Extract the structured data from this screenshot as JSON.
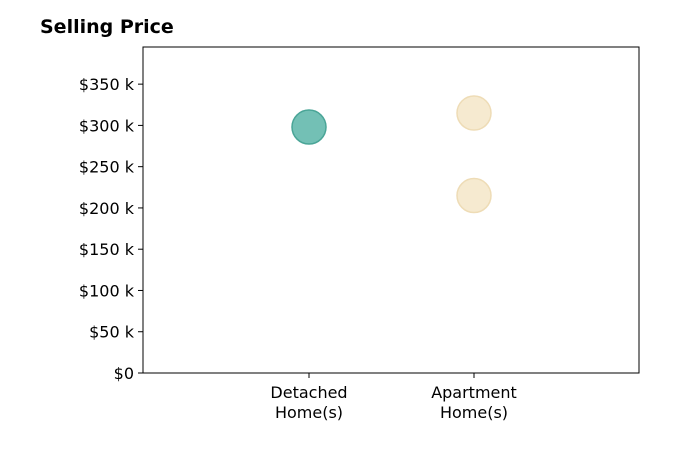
{
  "chart_data": {
    "type": "scatter",
    "title": "Selling Price",
    "xlabel": "",
    "ylabel": "",
    "categories": [
      {
        "line1": "Detached",
        "line2": "Home(s)"
      },
      {
        "line1": "Apartment",
        "line2": "Home(s)"
      }
    ],
    "ylim": [
      0,
      395000
    ],
    "yticks": [
      0,
      50000,
      100000,
      150000,
      200000,
      250000,
      300000,
      350000
    ],
    "ytick_labels": [
      "$0",
      "$50 k",
      "$100 k",
      "$150 k",
      "$200 k",
      "$250 k",
      "$300 k",
      "$350 k"
    ],
    "grid": false,
    "points": [
      {
        "category": "Detached Home(s)",
        "y": 298000,
        "color": "#5bb5a8",
        "stroke": "#4aa597",
        "opacity": 0.85
      },
      {
        "category": "Apartment Home(s)",
        "y": 315000,
        "color": "#f5e6c8",
        "stroke": "#eedcb6",
        "opacity": 0.85
      },
      {
        "category": "Apartment Home(s)",
        "y": 215000,
        "color": "#f5e6c8",
        "stroke": "#eedcb6",
        "opacity": 0.85
      }
    ]
  }
}
